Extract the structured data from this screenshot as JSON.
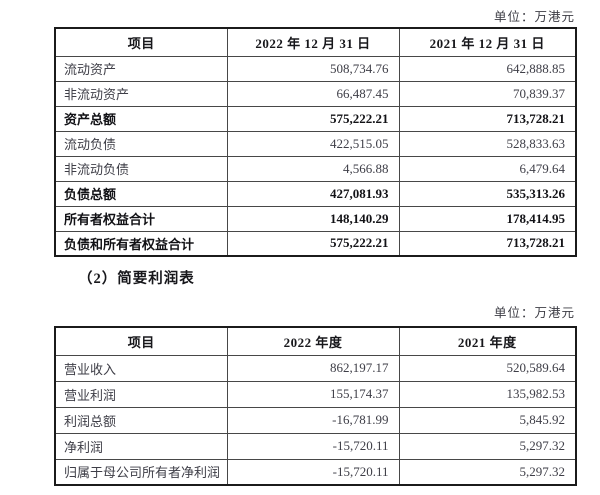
{
  "unit_label": "单位：万港元",
  "section_heading": "（2）简要利润表",
  "balance_table": {
    "headers": [
      "项目",
      "2022 年 12 月 31 日",
      "2021 年 12 月 31 日"
    ],
    "rows": [
      {
        "label": "流动资产",
        "v2022": "508,734.76",
        "v2021": "642,888.85",
        "bold": false
      },
      {
        "label": "非流动资产",
        "v2022": "66,487.45",
        "v2021": "70,839.37",
        "bold": false
      },
      {
        "label": "资产总额",
        "v2022": "575,222.21",
        "v2021": "713,728.21",
        "bold": true
      },
      {
        "label": "流动负债",
        "v2022": "422,515.05",
        "v2021": "528,833.63",
        "bold": false
      },
      {
        "label": "非流动负债",
        "v2022": "4,566.88",
        "v2021": "6,479.64",
        "bold": false
      },
      {
        "label": "负债总额",
        "v2022": "427,081.93",
        "v2021": "535,313.26",
        "bold": true
      },
      {
        "label": "所有者权益合计",
        "v2022": "148,140.29",
        "v2021": "178,414.95",
        "bold": true
      },
      {
        "label": "负债和所有者权益合计",
        "v2022": "575,222.21",
        "v2021": "713,728.21",
        "bold": true
      }
    ]
  },
  "income_table": {
    "headers": [
      "项目",
      "2022 年度",
      "2021 年度"
    ],
    "rows": [
      {
        "label": "营业收入",
        "v2022": "862,197.17",
        "v2021": "520,589.64",
        "bold": false
      },
      {
        "label": "营业利润",
        "v2022": "155,174.37",
        "v2021": "135,982.53",
        "bold": false
      },
      {
        "label": "利润总额",
        "v2022": "-16,781.99",
        "v2021": "5,845.92",
        "bold": false
      },
      {
        "label": "净利润",
        "v2022": "-15,720.11",
        "v2021": "5,297.32",
        "bold": false
      },
      {
        "label": "归属于母公司所有者净利润",
        "v2022": "-15,720.11",
        "v2021": "5,297.32",
        "bold": false
      }
    ]
  }
}
